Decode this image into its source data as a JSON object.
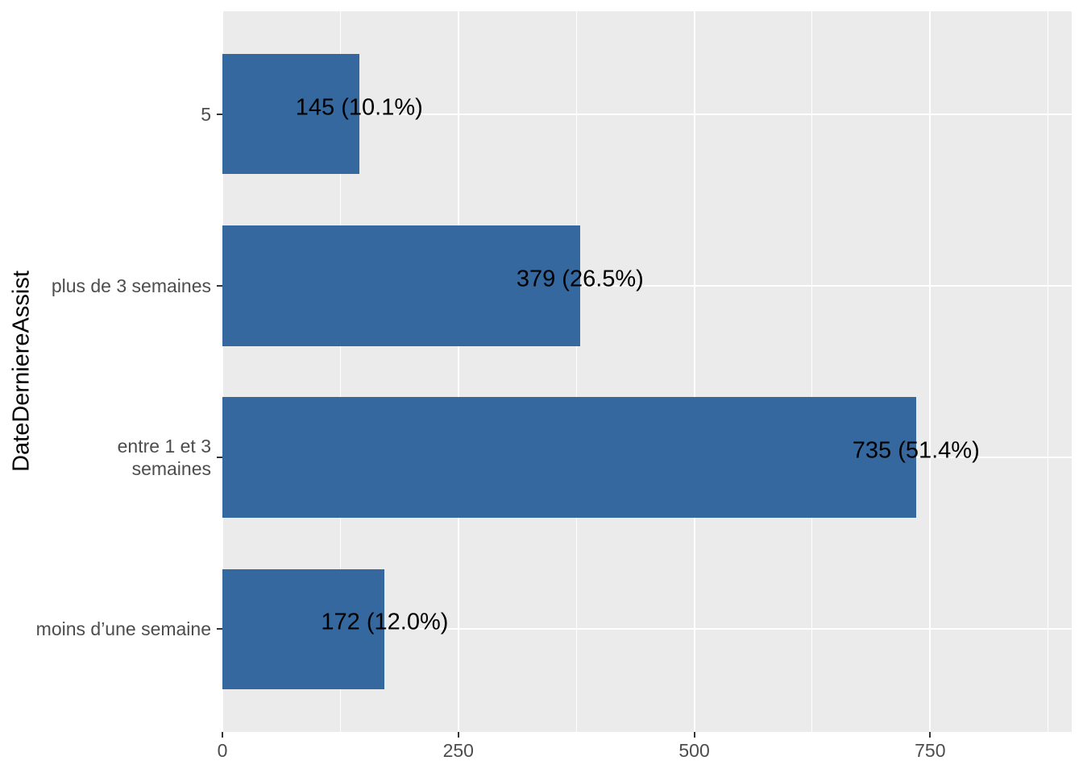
{
  "chart_data": {
    "type": "bar",
    "orientation": "horizontal",
    "title": "",
    "xlabel": "",
    "ylabel": "DateDerniereAssist",
    "categories": [
      "5",
      "plus de 3 semaines",
      "entre 1 et 3\nsemaines",
      "moins d’une semaine"
    ],
    "values": [
      145,
      379,
      735,
      172
    ],
    "percentages": [
      10.1,
      26.5,
      51.4,
      12.0
    ],
    "bar_labels": [
      "145 (10.1%)",
      "379 (26.5%)",
      "735 (51.4%)",
      "172 (12.0%)"
    ],
    "x_tick_labels": [
      "0",
      "250",
      "500",
      "750"
    ],
    "x_tick_values": [
      0,
      250,
      500,
      750
    ],
    "x_minor_tick_values": [
      125,
      375,
      625,
      875
    ],
    "xlim": [
      0,
      900
    ],
    "grid": "on",
    "legend": "none",
    "colors": {
      "bar": "#34689E",
      "panel_background": "#EBEBEB",
      "grid_major": "#FFFFFF",
      "grid_minor": "#FFFFFF",
      "axis_text": "#4D4D4D",
      "axis_title": "#000000",
      "bar_label_text": "#000000",
      "tick_mark": "#333333",
      "figure_background": "#FFFFFF"
    }
  }
}
